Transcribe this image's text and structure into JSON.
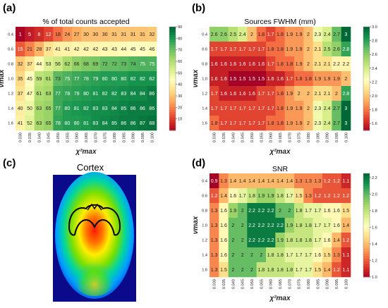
{
  "chart_data": [
    {
      "panel": "(a)",
      "type": "heatmap",
      "title": "% of total counts accepted",
      "xlabel": "χ²max",
      "ylabel": "νmax",
      "x_ticks": [
        "0.030",
        "0.035",
        "0.040",
        "0.045",
        "0.050",
        "0.055",
        "0.060",
        "0.065",
        "0.070",
        "0.075",
        "0.080",
        "0.085",
        "0.090",
        "0.095",
        "0.100"
      ],
      "y_ticks": [
        "0.4",
        "0.6",
        "0.8",
        "1.0",
        "1.2",
        "1.4",
        "1.6"
      ],
      "colorbar": {
        "min": 0,
        "max": 90,
        "ticks": [
          "90",
          "80",
          "70",
          "60",
          "50",
          "40",
          "30",
          "20",
          "10"
        ]
      },
      "values": [
        [
          1,
          5,
          8,
          12,
          18,
          24,
          27,
          30,
          30,
          30,
          31,
          31,
          31,
          31,
          32
        ],
        [
          15,
          21,
          28,
          37,
          41,
          41,
          42,
          42,
          42,
          43,
          43,
          44,
          45,
          45,
          46
        ],
        [
          32,
          37,
          44,
          53,
          56,
          62,
          66,
          68,
          69,
          72,
          72,
          73,
          74,
          75,
          75
        ],
        [
          35,
          45,
          59,
          61,
          73,
          75,
          77,
          78,
          79,
          80,
          80,
          80,
          82,
          82,
          82
        ],
        [
          37,
          47,
          61,
          63,
          77,
          78,
          79,
          80,
          81,
          82,
          82,
          83,
          84,
          84,
          86
        ],
        [
          40,
          50,
          63,
          65,
          77,
          80,
          81,
          82,
          83,
          83,
          84,
          85,
          86,
          86,
          86
        ],
        [
          41,
          52,
          63,
          65,
          78,
          80,
          80,
          81,
          83,
          84,
          85,
          86,
          86,
          87,
          88
        ]
      ]
    },
    {
      "panel": "(b)",
      "type": "heatmap",
      "title": "Sources FWHM (mm)",
      "xlabel": "χ²max",
      "ylabel": "νmax",
      "x_ticks": [
        "0.030",
        "0.035",
        "0.040",
        "0.045",
        "0.050",
        "0.055",
        "0.060",
        "0.065",
        "0.070",
        "0.075",
        "0.080",
        "0.085",
        "0.090",
        "0.095",
        "0.100"
      ],
      "y_ticks": [
        "0.4",
        "0.6",
        "0.8",
        "1.0",
        "1.2",
        "1.4",
        "1.6"
      ],
      "colorbar": {
        "min": 1.5,
        "max": 3.0,
        "ticks": [
          "3.0",
          "2.8",
          "2.6",
          "2.4",
          "2.2",
          "2.0",
          "1.8",
          "1.6"
        ]
      },
      "values": [
        [
          2.6,
          2.6,
          2.5,
          2.4,
          2.0,
          1.8,
          1.7,
          1.8,
          1.9,
          1.9,
          2.0,
          2.3,
          2.4,
          2.7,
          3.0
        ],
        [
          1.7,
          1.7,
          1.7,
          1.7,
          1.7,
          1.7,
          1.8,
          1.8,
          1.9,
          1.9,
          2.0,
          2.1,
          2.5,
          2.6,
          2.8
        ],
        [
          1.6,
          1.6,
          1.6,
          1.6,
          1.6,
          1.6,
          1.7,
          1.8,
          1.8,
          1.9,
          2.0,
          2.1,
          2.1,
          2.2,
          2.2
        ],
        [
          1.6,
          1.6,
          1.5,
          1.5,
          1.5,
          1.5,
          1.6,
          1.6,
          1.7,
          1.8,
          1.8,
          1.9,
          1.9,
          1.9,
          2.0
        ],
        [
          1.7,
          1.6,
          1.6,
          1.6,
          1.6,
          1.7,
          1.7,
          1.8,
          1.9,
          2.0,
          2.0,
          2.1,
          2.1,
          2.0,
          2.8
        ],
        [
          1.7,
          1.7,
          1.7,
          1.7,
          1.7,
          1.7,
          1.7,
          1.8,
          1.9,
          1.9,
          2.0,
          2.3,
          2.4,
          2.7,
          3.0
        ],
        [
          1.8,
          1.7,
          1.7,
          1.7,
          1.7,
          1.7,
          1.8,
          1.8,
          1.9,
          1.9,
          2.0,
          2.3,
          2.4,
          2.7,
          3.0
        ]
      ]
    },
    {
      "panel": "(d)",
      "type": "heatmap",
      "title": "SNR",
      "xlabel": "χ²max",
      "ylabel": "νmax",
      "x_ticks": [
        "0.030",
        "0.035",
        "0.040",
        "0.045",
        "0.050",
        "0.055",
        "0.060",
        "0.065",
        "0.070",
        "0.075",
        "0.080",
        "0.085",
        "0.090",
        "0.095",
        "0.100"
      ],
      "y_ticks": [
        "0.4",
        "0.6",
        "0.8",
        "1.0",
        "1.2",
        "1.4",
        "1.6"
      ],
      "colorbar": {
        "min": 1.0,
        "max": 2.25,
        "ticks": [
          "2.2",
          "2.0",
          "1.8",
          "1.6",
          "1.4",
          "1.2",
          "1.0"
        ]
      },
      "values": [
        [
          0.9,
          1.3,
          1.4,
          1.4,
          1.4,
          1.4,
          1.4,
          1.4,
          1.4,
          1.3,
          1.3,
          1.3,
          1.2,
          1.2,
          1.1
        ],
        [
          1.2,
          1.4,
          1.6,
          1.7,
          1.8,
          1.9,
          1.9,
          1.8,
          1.7,
          1.5,
          1.3,
          1.2,
          1.2,
          1.2,
          1.2
        ],
        [
          1.3,
          1.6,
          1.9,
          2.0,
          2.2,
          2.2,
          2.2,
          2.0,
          2.0,
          1.8,
          1.7,
          1.7,
          1.6,
          1.6,
          1.5
        ],
        [
          1.3,
          1.6,
          2.0,
          2.0,
          2.2,
          2.2,
          2.2,
          2.2,
          1.9,
          1.8,
          1.8,
          1.7,
          1.7,
          1.6,
          1.4
        ],
        [
          1.3,
          1.6,
          2.0,
          2.0,
          2.2,
          2.2,
          2.2,
          1.9,
          1.8,
          1.8,
          1.8,
          1.7,
          1.6,
          1.4,
          1.2
        ],
        [
          1.3,
          1.6,
          2.0,
          2.0,
          2.0,
          2.0,
          1.8,
          1.8,
          1.7,
          1.7,
          1.7,
          1.6,
          1.5,
          1.3,
          1.1
        ],
        [
          1.3,
          1.5,
          2.0,
          2.0,
          2.0,
          1.8,
          1.8,
          1.8,
          1.8,
          1.7,
          1.7,
          1.5,
          1.4,
          1.2,
          1.1
        ]
      ]
    }
  ],
  "image_panel": {
    "panel": "(c)",
    "title": "Cortex"
  }
}
